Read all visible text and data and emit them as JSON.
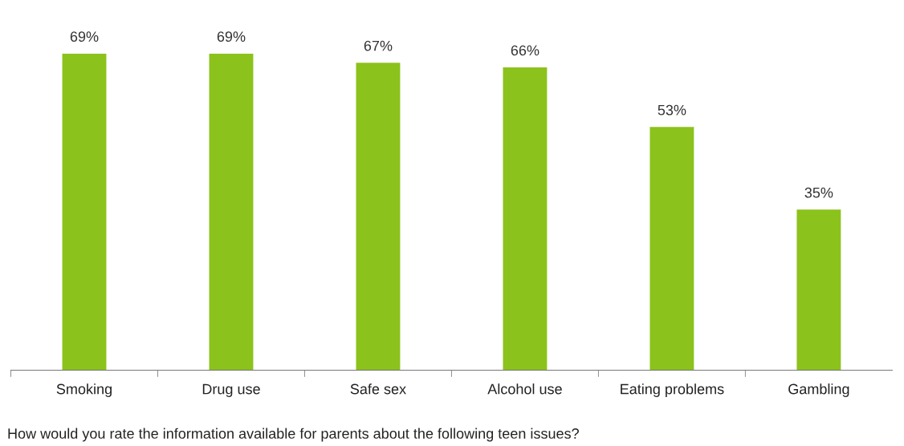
{
  "chart_data": {
    "type": "bar",
    "categories": [
      "Smoking",
      "Drug use",
      "Safe sex",
      "Alcohol use",
      "Eating problems",
      "Gambling"
    ],
    "values": [
      69,
      69,
      67,
      66,
      53,
      35
    ],
    "value_labels": [
      "69%",
      "69%",
      "67%",
      "66%",
      "53%",
      "35%"
    ],
    "color": "#8cc21c",
    "tick_labels": "x",
    "grid": false,
    "legend": false,
    "annotations": [
      "How would you rate the information available for parents about the following teen issues?"
    ]
  }
}
